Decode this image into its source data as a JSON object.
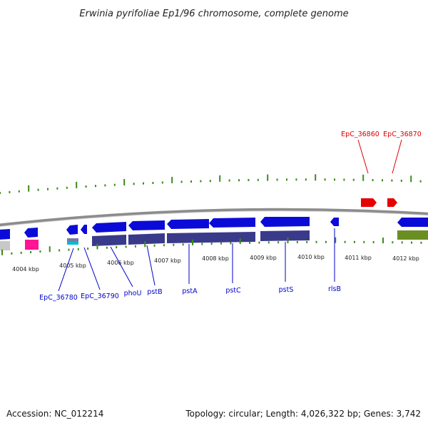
{
  "title": "Erwinia pyrifoliae Ep1/96 chromosome, complete genome",
  "accession": "Accession: NC_012214",
  "summary": "Topology: circular; Length: 4,026,322 bp; Genes: 3,742",
  "colors": {
    "backbone": "#8c8c8c",
    "tick": "#3a8a1a",
    "blue_gene": "#0b0bd8",
    "cds_band": "#3a3a8a",
    "red_gene": "#e60000",
    "pink_gene": "#ff1493",
    "olive_band": "#6b8e23",
    "gray_band": "#c8c8c8",
    "label_blue": "#0000cc",
    "label_red": "#dd0000"
  },
  "scale_labels": [
    "4004 kbp",
    "4005 kbp",
    "4006 kbp",
    "4007 kbp",
    "4008 kbp",
    "4009 kbp",
    "4010 kbp",
    "4011 kbp",
    "4012 kbp"
  ],
  "genes_lower": [
    "EpC_36780",
    "EpC_36790",
    "phoU",
    "pstB",
    "pstA",
    "pstC",
    "pstS",
    "rlsB"
  ],
  "genes_upper": [
    "EpC_36860",
    "EpC_36870"
  ]
}
